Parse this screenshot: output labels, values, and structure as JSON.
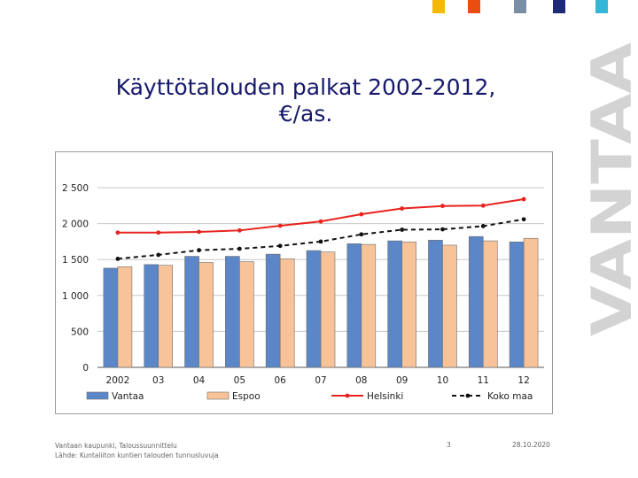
{
  "slide": {
    "title_line1": "Käyttötalouden palkat 2002-2012,",
    "title_line2": "€/as.",
    "brand_text": "VANTAA",
    "footer_source_line1": "Vantaan kaupunki, Taloussuunnittelu",
    "footer_source_line2": "Lähde: Kuntaliiton kuntien talouden tunnusluvuja",
    "page_number": "3",
    "date": "28.10.2020",
    "corner_square_colors": [
      "#f5b800",
      "#e84e0f",
      "#7a8fa6",
      "#1e2a78",
      "#35b6d6"
    ]
  },
  "chart_data": {
    "type": "bar",
    "categories": [
      "2002",
      "03",
      "04",
      "05",
      "06",
      "07",
      "08",
      "09",
      "10",
      "11",
      "12"
    ],
    "ylim": [
      0,
      2500
    ],
    "yticks": [
      0,
      500,
      1000,
      1500,
      2000,
      2500
    ],
    "ytick_labels": [
      "0",
      "500",
      "1 000",
      "1 500",
      "2 000",
      "2 500"
    ],
    "grid": true,
    "legend_position": "bottom",
    "series": [
      {
        "name": "Vantaa",
        "kind": "bar",
        "color": "#5b87c9",
        "values": [
          1380,
          1430,
          1545,
          1545,
          1575,
          1625,
          1720,
          1760,
          1770,
          1820,
          1745
        ]
      },
      {
        "name": "Espoo",
        "kind": "bar",
        "color": "#f9c39a",
        "values": [
          1400,
          1420,
          1460,
          1470,
          1510,
          1605,
          1710,
          1745,
          1700,
          1760,
          1795
        ]
      },
      {
        "name": "Helsinki",
        "kind": "line",
        "color": "#e8231e",
        "dash": "solid",
        "values": [
          1875,
          1875,
          1885,
          1905,
          1970,
          2030,
          2130,
          2210,
          2245,
          2250,
          2340
        ]
      },
      {
        "name": "Koko maa",
        "kind": "line",
        "color": "#111111",
        "dash": "dashed",
        "values": [
          1510,
          1565,
          1630,
          1650,
          1690,
          1750,
          1850,
          1915,
          1920,
          1965,
          2060
        ]
      }
    ]
  }
}
